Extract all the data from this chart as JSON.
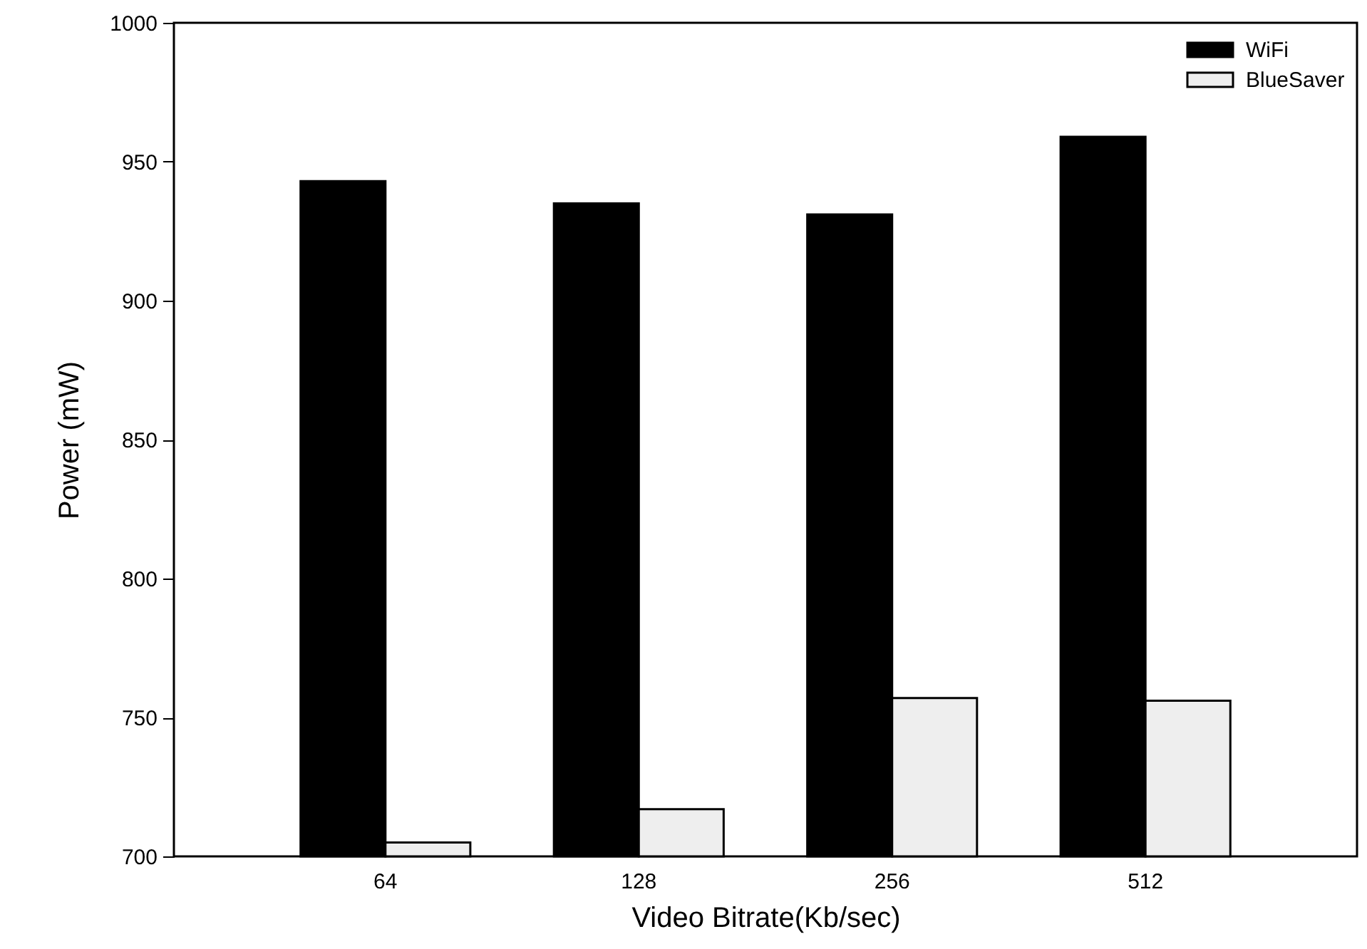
{
  "chart_data": {
    "type": "bar",
    "xlabel": "Video Bitrate(Kb/sec)",
    "ylabel": "Power (mW)",
    "categories": [
      "64",
      "128",
      "256",
      "512"
    ],
    "series": [
      {
        "name": "WiFi",
        "color": "#000000",
        "values": [
          943,
          935,
          931,
          959
        ]
      },
      {
        "name": "BlueSaver",
        "color": "#eeeeee",
        "values": [
          705,
          717,
          757,
          756
        ]
      }
    ],
    "ylim": [
      700,
      1000
    ],
    "yticks": [
      700,
      750,
      800,
      850,
      900,
      950,
      1000
    ],
    "grid": false,
    "legend": "top right"
  }
}
